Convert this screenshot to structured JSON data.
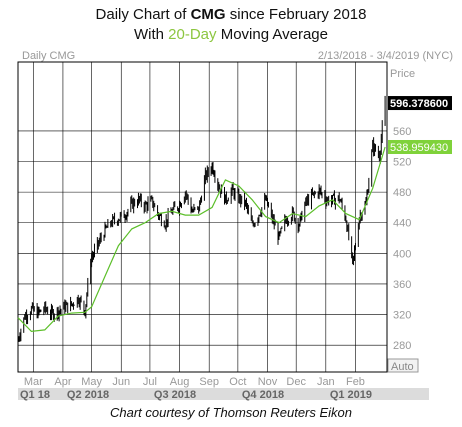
{
  "header": {
    "title_prefix": "Daily Chart of ",
    "title_symbol": "CMG",
    "title_suffix": " since February 2018",
    "subtitle_prefix": "With ",
    "subtitle_highlight": "20-Day",
    "subtitle_suffix": " Moving Average"
  },
  "chart_header": {
    "left_label": "Daily CMG",
    "date_range": "2/13/2018 - 3/4/2019 (NYC)",
    "price_label": "Price",
    "auto_label": "Auto"
  },
  "footer": {
    "credit": "Chart courtesy of Thomson Reuters Eikon"
  },
  "colors": {
    "price_bar": "#000000",
    "moving_average": "#5cbf2a",
    "ma_label_bg": "#7fd23a",
    "last_price_bg": "#000000",
    "grid": "#000000",
    "quarter_band": "#dcdcdc"
  },
  "chart_data": {
    "type": "line",
    "title": "Daily Chart of CMG since February 2018",
    "subtitle": "With 20-Day Moving Average",
    "ylabel": "Price",
    "ylim": [
      245,
      650
    ],
    "y_ticks": [
      280,
      320,
      360,
      400,
      440,
      480,
      520,
      560
    ],
    "y_tick_labels": [
      "280",
      "320",
      "360",
      "400",
      "440",
      "480",
      "520",
      "560"
    ],
    "x_month_labels": [
      {
        "date": "2018-03-01",
        "label": "Mar"
      },
      {
        "date": "2018-04-01",
        "label": "Apr"
      },
      {
        "date": "2018-05-01",
        "label": "May"
      },
      {
        "date": "2018-06-01",
        "label": "Jun"
      },
      {
        "date": "2018-07-01",
        "label": "Jul"
      },
      {
        "date": "2018-08-01",
        "label": "Aug"
      },
      {
        "date": "2018-09-01",
        "label": "Sep"
      },
      {
        "date": "2018-10-01",
        "label": "Oct"
      },
      {
        "date": "2018-11-01",
        "label": "Nov"
      },
      {
        "date": "2018-12-01",
        "label": "Dec"
      },
      {
        "date": "2019-01-01",
        "label": "Jan"
      },
      {
        "date": "2019-02-01",
        "label": "Feb"
      }
    ],
    "x_quarter_labels": [
      {
        "date": "2018-02-13",
        "label": "Q1 18"
      },
      {
        "date": "2018-04-01",
        "label": "Q2 2018"
      },
      {
        "date": "2018-07-01",
        "label": "Q3 2018"
      },
      {
        "date": "2018-10-01",
        "label": "Q4 2018"
      },
      {
        "date": "2019-01-01",
        "label": "Q1 2019"
      }
    ],
    "last_price_label": "596.378600",
    "last_price": 596.3786,
    "ma_label": "538.959430",
    "ma_last": 538.95943,
    "series": [
      {
        "name": "CMG",
        "style": "daily_bars",
        "x": [
          "2018-02-13",
          "2018-02-20",
          "2018-02-27",
          "2018-03-06",
          "2018-03-13",
          "2018-03-20",
          "2018-03-27",
          "2018-04-03",
          "2018-04-10",
          "2018-04-17",
          "2018-04-24",
          "2018-04-30",
          "2018-05-07",
          "2018-05-14",
          "2018-05-21",
          "2018-05-29",
          "2018-06-05",
          "2018-06-12",
          "2018-06-19",
          "2018-06-26",
          "2018-07-03",
          "2018-07-10",
          "2018-07-17",
          "2018-07-24",
          "2018-07-31",
          "2018-08-07",
          "2018-08-14",
          "2018-08-21",
          "2018-08-28",
          "2018-09-04",
          "2018-09-11",
          "2018-09-18",
          "2018-09-25",
          "2018-10-02",
          "2018-10-09",
          "2018-10-16",
          "2018-10-23",
          "2018-10-30",
          "2018-11-06",
          "2018-11-13",
          "2018-11-20",
          "2018-11-27",
          "2018-12-04",
          "2018-12-11",
          "2018-12-18",
          "2018-12-25",
          "2019-01-01",
          "2019-01-08",
          "2019-01-15",
          "2019-01-22",
          "2019-01-29",
          "2019-02-05",
          "2019-02-12",
          "2019-02-19",
          "2019-02-26",
          "2019-03-04"
        ],
        "y": [
          288,
          318,
          327,
          322,
          328,
          321,
          325,
          330,
          333,
          342,
          325,
          392,
          410,
          428,
          440,
          446,
          451,
          464,
          470,
          462,
          468,
          450,
          440,
          455,
          462,
          480,
          455,
          458,
          500,
          515,
          488,
          470,
          482,
          472,
          465,
          436,
          452,
          470,
          445,
          420,
          444,
          452,
          438,
          466,
          475,
          482,
          470,
          470,
          472,
          445,
          385,
          448,
          465,
          540,
          528,
          596
        ]
      },
      {
        "name": "20-Day Moving Average",
        "style": "line",
        "x": [
          "2018-02-13",
          "2018-02-27",
          "2018-03-13",
          "2018-03-27",
          "2018-04-10",
          "2018-04-24",
          "2018-05-01",
          "2018-05-15",
          "2018-05-29",
          "2018-06-12",
          "2018-06-26",
          "2018-07-10",
          "2018-07-24",
          "2018-08-07",
          "2018-08-21",
          "2018-09-04",
          "2018-09-18",
          "2018-10-02",
          "2018-10-16",
          "2018-10-30",
          "2018-11-13",
          "2018-11-27",
          "2018-12-11",
          "2018-12-25",
          "2019-01-08",
          "2019-01-22",
          "2019-02-05",
          "2019-02-19",
          "2019-03-04"
        ],
        "y": [
          316,
          298,
          300,
          318,
          322,
          323,
          330,
          370,
          410,
          432,
          440,
          452,
          455,
          450,
          450,
          460,
          496,
          488,
          470,
          448,
          440,
          452,
          448,
          462,
          470,
          452,
          444,
          485,
          539
        ]
      }
    ]
  }
}
